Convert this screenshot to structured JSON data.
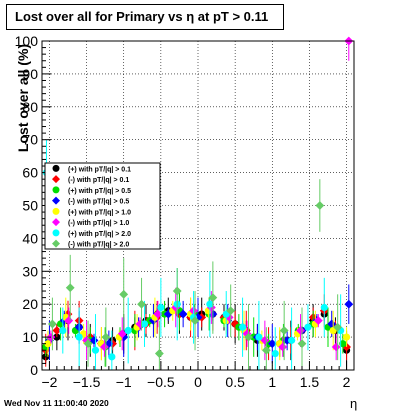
{
  "footer": "Wed Nov 11 11:00:40 2020",
  "chart_data": {
    "type": "scatter",
    "title": "Lost over all for Primary vs  η at pT > 0.11",
    "xlabel": "η",
    "ylabel": "Lost over all (%)",
    "xlim": [
      -2.1,
      2.1
    ],
    "ylim": [
      0,
      100
    ],
    "xticks": [
      -2,
      -1.5,
      -1,
      -0.5,
      0,
      0.5,
      1,
      1.5,
      2
    ],
    "xtick_labels": [
      "−2",
      "−1.5",
      "−1",
      "−0.5",
      "0",
      "0.5",
      "1",
      "1.5",
      "2"
    ],
    "yticks": [
      0,
      10,
      20,
      30,
      40,
      50,
      60,
      70,
      80,
      90,
      100
    ],
    "ytick_labels": [
      "0",
      "10",
      "20",
      "30",
      "40",
      "50",
      "60",
      "70",
      "80",
      "90",
      "100"
    ],
    "grid": true,
    "legend_position": "left",
    "series": [
      {
        "name": "(+) with pT/|q| > 0.1",
        "color": "#000000",
        "x": [
          -2.05,
          -1.9,
          -1.75,
          -1.6,
          -1.45,
          -1.3,
          -1.15,
          -1.0,
          -0.85,
          -0.7,
          -0.55,
          -0.4,
          -0.25,
          -0.1,
          0.05,
          0.2,
          0.35,
          0.5,
          0.65,
          0.8,
          0.95,
          1.1,
          1.25,
          1.4,
          1.55,
          1.7,
          1.85,
          2.0
        ],
        "y": [
          4,
          10,
          15,
          13,
          9,
          8,
          9,
          11,
          13,
          15,
          17,
          18,
          17,
          16,
          17,
          17,
          16,
          14,
          12,
          9,
          8,
          8,
          9,
          12,
          15,
          17,
          12,
          6
        ]
      },
      {
        "name": "(-) with pT/|q| > 0.1",
        "color": "#ff0000",
        "x": [
          -2.05,
          -1.9,
          -1.75,
          -1.6,
          -1.45,
          -1.3,
          -1.15,
          -1.0,
          -0.85,
          -0.7,
          -0.55,
          -0.4,
          -0.25,
          -0.1,
          0.05,
          0.2,
          0.35,
          0.5,
          0.65,
          0.8,
          0.95,
          1.1,
          1.25,
          1.4,
          1.55,
          1.7,
          1.85,
          2.0
        ],
        "y": [
          6,
          12,
          17,
          15,
          10,
          8,
          8,
          10,
          12,
          14,
          16,
          17,
          17,
          16,
          16,
          17,
          16,
          14,
          12,
          10,
          8,
          8,
          9,
          12,
          16,
          18,
          13,
          7
        ]
      },
      {
        "name": "(+) with pT/|q| > 0.5",
        "color": "#00dd00",
        "x": [
          -2.05,
          -1.85,
          -1.65,
          -1.45,
          -1.25,
          -1.05,
          -0.85,
          -0.65,
          -0.45,
          -0.25,
          -0.05,
          0.15,
          0.35,
          0.55,
          0.75,
          0.95,
          1.15,
          1.35,
          1.55,
          1.75,
          1.95
        ],
        "y": [
          7,
          14,
          12,
          9,
          7,
          10,
          12,
          15,
          17,
          18,
          17,
          17,
          15,
          13,
          10,
          8,
          9,
          12,
          14,
          13,
          8
        ]
      },
      {
        "name": "(-) with pT/|q| > 0.5",
        "color": "#0000ff",
        "x": [
          -2.0,
          -1.8,
          -1.6,
          -1.4,
          -1.2,
          -1.0,
          -0.8,
          -0.6,
          -0.4,
          -0.2,
          0.0,
          0.2,
          0.4,
          0.6,
          0.8,
          1.0,
          1.2,
          1.4,
          1.6,
          1.8,
          2.03
        ],
        "y": [
          9,
          15,
          13,
          9,
          8,
          10,
          13,
          15,
          17,
          17,
          16,
          17,
          15,
          13,
          10,
          8,
          9,
          12,
          15,
          14,
          20
        ]
      },
      {
        "name": "(+) with pT/|q| > 1.0",
        "color": "#ffff00",
        "x": [
          -2.02,
          -1.78,
          -1.54,
          -1.3,
          -1.06,
          -0.82,
          -0.58,
          -0.34,
          -0.1,
          0.14,
          0.38,
          0.62,
          0.86,
          1.1,
          1.34,
          1.58,
          1.82,
          2.0
        ],
        "y": [
          8,
          16,
          11,
          8,
          10,
          13,
          16,
          18,
          17,
          18,
          15,
          12,
          9,
          8,
          11,
          14,
          12,
          10
        ]
      },
      {
        "name": "(-) with pT/|q| > 1.0",
        "color": "#ff00ff",
        "x": [
          -1.98,
          -1.74,
          -1.5,
          -1.26,
          -1.02,
          -0.78,
          -0.54,
          -0.3,
          -0.06,
          0.18,
          0.42,
          0.66,
          0.9,
          1.14,
          1.38,
          1.62,
          1.86,
          2.03
        ],
        "y": [
          10,
          15,
          9,
          7,
          11,
          14,
          17,
          19,
          18,
          19,
          16,
          11,
          9,
          7,
          12,
          15,
          7,
          100
        ]
      },
      {
        "name": "(+) with pT/|q| > 2.0",
        "color": "#00ffff",
        "x": [
          -2.04,
          -1.82,
          -1.6,
          -1.38,
          -1.16,
          -0.94,
          -0.72,
          -0.5,
          -0.28,
          -0.06,
          0.16,
          0.38,
          0.6,
          0.82,
          1.04,
          1.26,
          1.48,
          1.7,
          1.92
        ],
        "y": [
          60,
          12,
          10,
          6,
          4,
          12,
          14,
          19,
          20,
          16,
          20,
          17,
          13,
          10,
          5,
          9,
          13,
          19,
          12
        ]
      },
      {
        "name": "(-) with pT/|q| > 2.0",
        "color": "#66cc66",
        "x": [
          -1.96,
          -1.72,
          -1.48,
          -1.24,
          -1.0,
          -0.76,
          -0.52,
          -0.28,
          -0.04,
          0.2,
          0.44,
          0.68,
          0.92,
          1.16,
          1.4,
          1.64,
          1.88
        ],
        "y": [
          14,
          25,
          8,
          10,
          23,
          20,
          5,
          24,
          15,
          22,
          18,
          10,
          6,
          12,
          8,
          50,
          13
        ]
      }
    ]
  }
}
